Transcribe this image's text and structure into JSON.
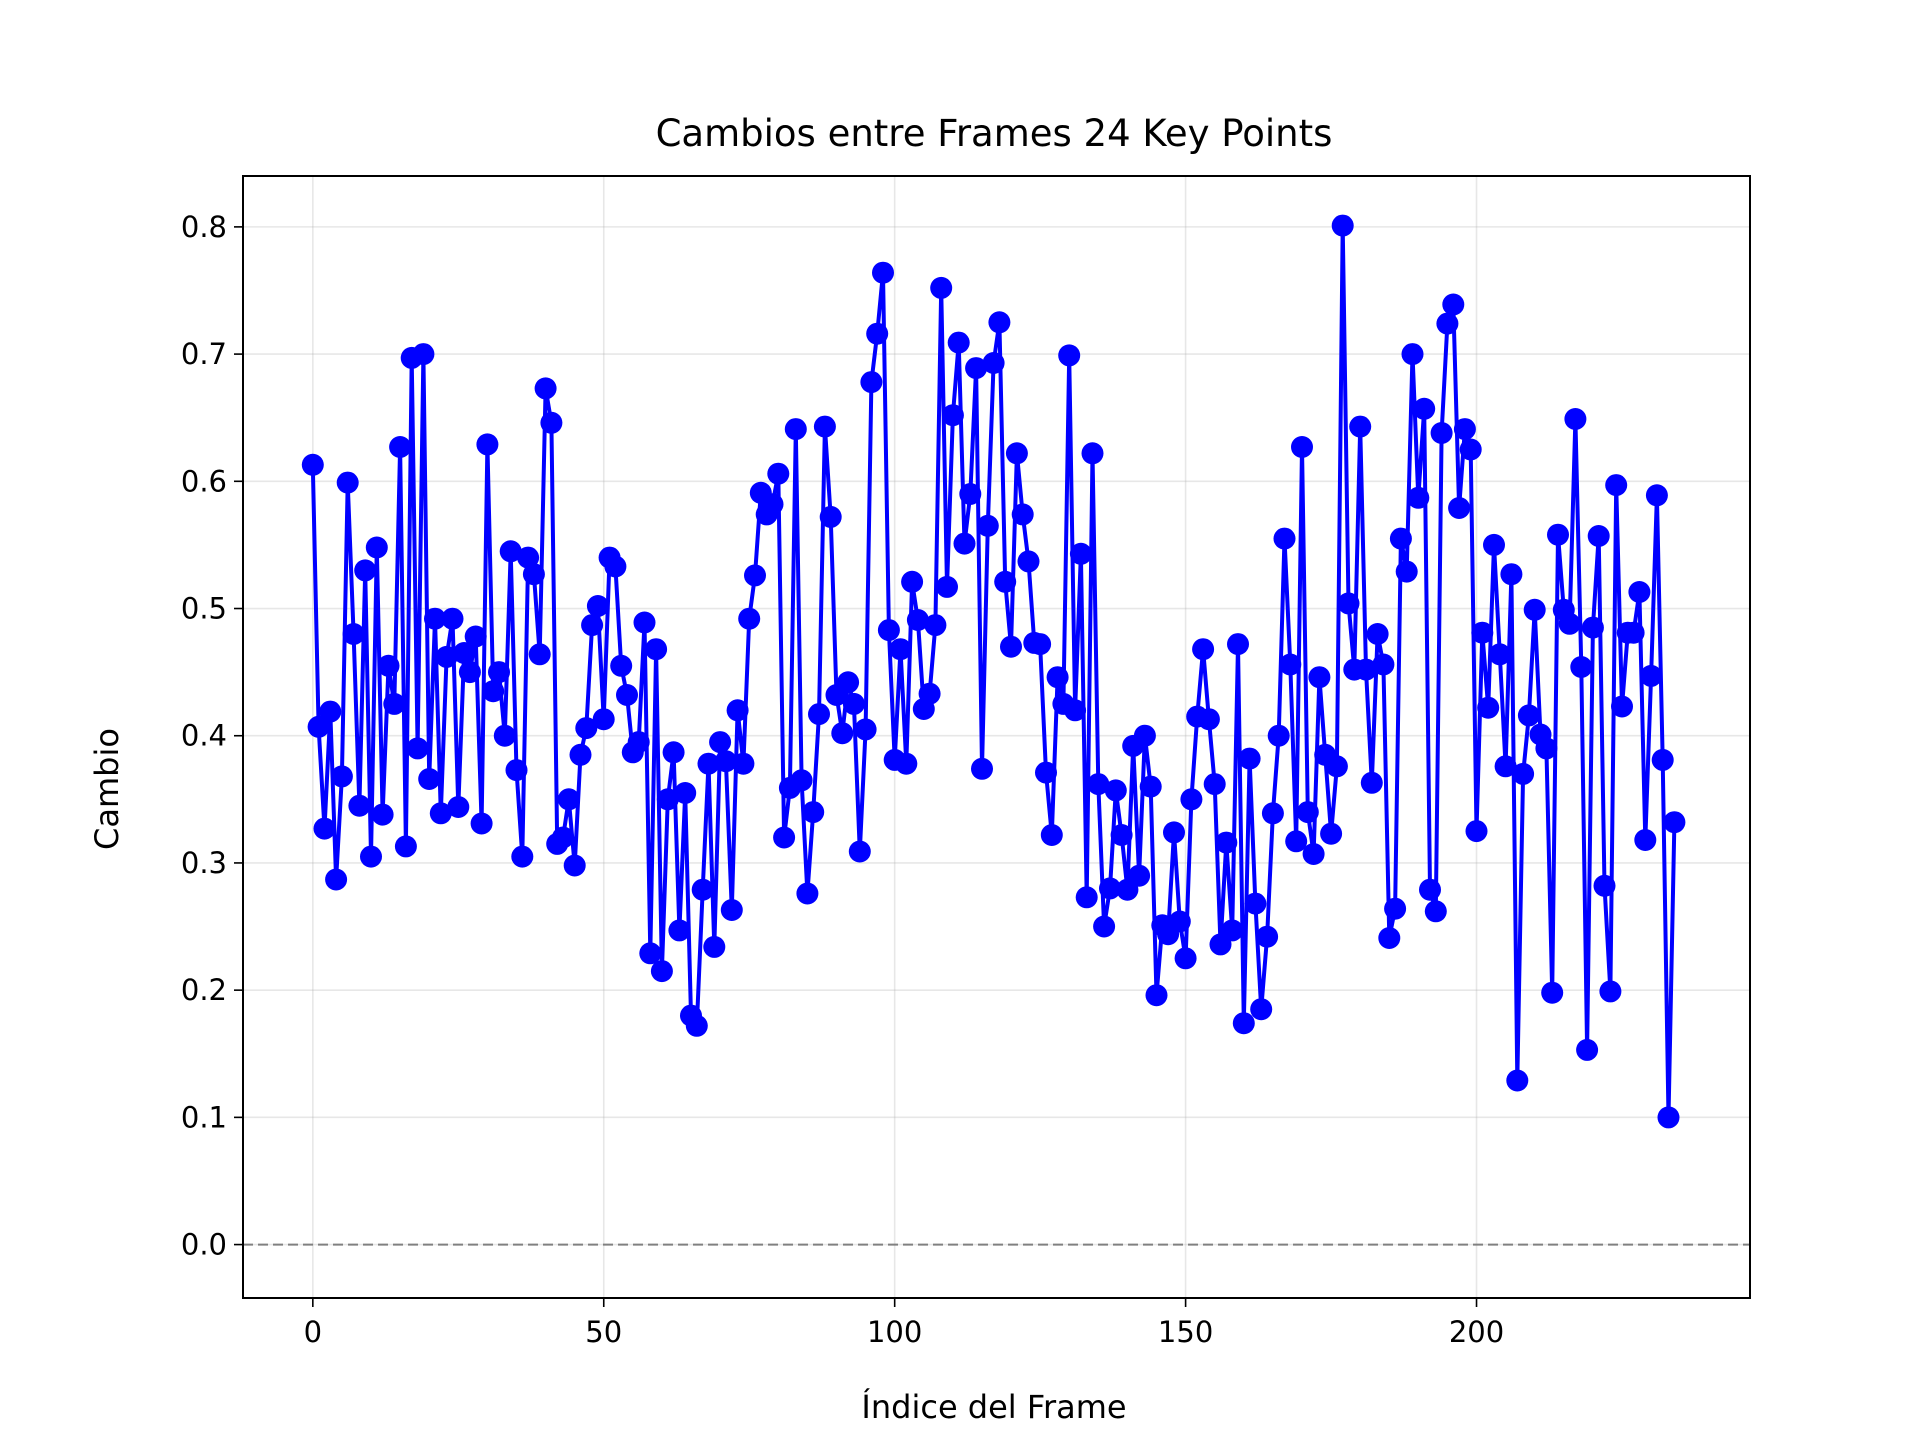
{
  "chart_data": {
    "type": "line",
    "title": "Cambios entre Frames 24 Key Points",
    "xlabel": "Índice del Frame",
    "ylabel": "Cambio",
    "xlim": [
      -12,
      247
    ],
    "ylim": [
      -0.042,
      0.84
    ],
    "xticks": [
      0,
      50,
      100,
      150,
      200
    ],
    "yticks": [
      0.0,
      0.1,
      0.2,
      0.3,
      0.4,
      0.5,
      0.6,
      0.7,
      0.8
    ],
    "ytick_labels": [
      "0.0",
      "0.1",
      "0.2",
      "0.3",
      "0.4",
      "0.5",
      "0.6",
      "0.7",
      "0.8"
    ],
    "grid": true,
    "reference_line": {
      "y": 0.0,
      "style": "dashed",
      "color": "#808080"
    },
    "series": [
      {
        "color": "#0000ff",
        "marker": "circle",
        "y": [
          0.613,
          0.407,
          0.327,
          0.419,
          0.287,
          0.368,
          0.599,
          0.48,
          0.345,
          0.53,
          0.305,
          0.548,
          0.338,
          0.455,
          0.425,
          0.627,
          0.313,
          0.697,
          0.39,
          0.7,
          0.366,
          0.492,
          0.339,
          0.462,
          0.492,
          0.344,
          0.465,
          0.45,
          0.478,
          0.331,
          0.629,
          0.435,
          0.45,
          0.4,
          0.545,
          0.373,
          0.305,
          0.54,
          0.527,
          0.464,
          0.673,
          0.646,
          0.315,
          0.32,
          0.35,
          0.298,
          0.385,
          0.406,
          0.487,
          0.502,
          0.413,
          0.54,
          0.533,
          0.455,
          0.432,
          0.387,
          0.395,
          0.489,
          0.229,
          0.468,
          0.215,
          0.35,
          0.387,
          0.247,
          0.355,
          0.18,
          0.172,
          0.279,
          0.378,
          0.234,
          0.395,
          0.38,
          0.263,
          0.42,
          0.378,
          0.492,
          0.526,
          0.591,
          0.574,
          0.582,
          0.606,
          0.32,
          0.359,
          0.641,
          0.365,
          0.276,
          0.34,
          0.417,
          0.643,
          0.572,
          0.432,
          0.402,
          0.442,
          0.425,
          0.309,
          0.405,
          0.678,
          0.716,
          0.764,
          0.483,
          0.381,
          0.468,
          0.378,
          0.521,
          0.491,
          0.421,
          0.433,
          0.487,
          0.752,
          0.517,
          0.652,
          0.709,
          0.551,
          0.59,
          0.689,
          0.374,
          0.565,
          0.693,
          0.725,
          0.521,
          0.47,
          0.622,
          0.574,
          0.537,
          0.473,
          0.472,
          0.371,
          0.322,
          0.446,
          0.425,
          0.699,
          0.42,
          0.543,
          0.273,
          0.622,
          0.362,
          0.25,
          0.28,
          0.357,
          0.322,
          0.279,
          0.392,
          0.29,
          0.4,
          0.36,
          0.196,
          0.251,
          0.244,
          0.324,
          0.254,
          0.225,
          0.35,
          0.415,
          0.468,
          0.413,
          0.362,
          0.236,
          0.316,
          0.247,
          0.472,
          0.174,
          0.382,
          0.268,
          0.185,
          0.242,
          0.339,
          0.4,
          0.555,
          0.456,
          0.317,
          0.627,
          0.34,
          0.307,
          0.446,
          0.385,
          0.323,
          0.376,
          0.801,
          0.504,
          0.452,
          0.643,
          0.452,
          0.363,
          0.48,
          0.456,
          0.241,
          0.264,
          0.555,
          0.529,
          0.7,
          0.587,
          0.657,
          0.279,
          0.262,
          0.638,
          0.724,
          0.739,
          0.579,
          0.641,
          0.625,
          0.325,
          0.481,
          0.422,
          0.55,
          0.464,
          0.376,
          0.527,
          0.129,
          0.37,
          0.416,
          0.499,
          0.401,
          0.39,
          0.198,
          0.558,
          0.499,
          0.488,
          0.649,
          0.454,
          0.153,
          0.485,
          0.557,
          0.282,
          0.199,
          0.597,
          0.423,
          0.481,
          0.481,
          0.513,
          0.318,
          0.447,
          0.589,
          0.381,
          0.1,
          0.332
        ]
      }
    ]
  }
}
